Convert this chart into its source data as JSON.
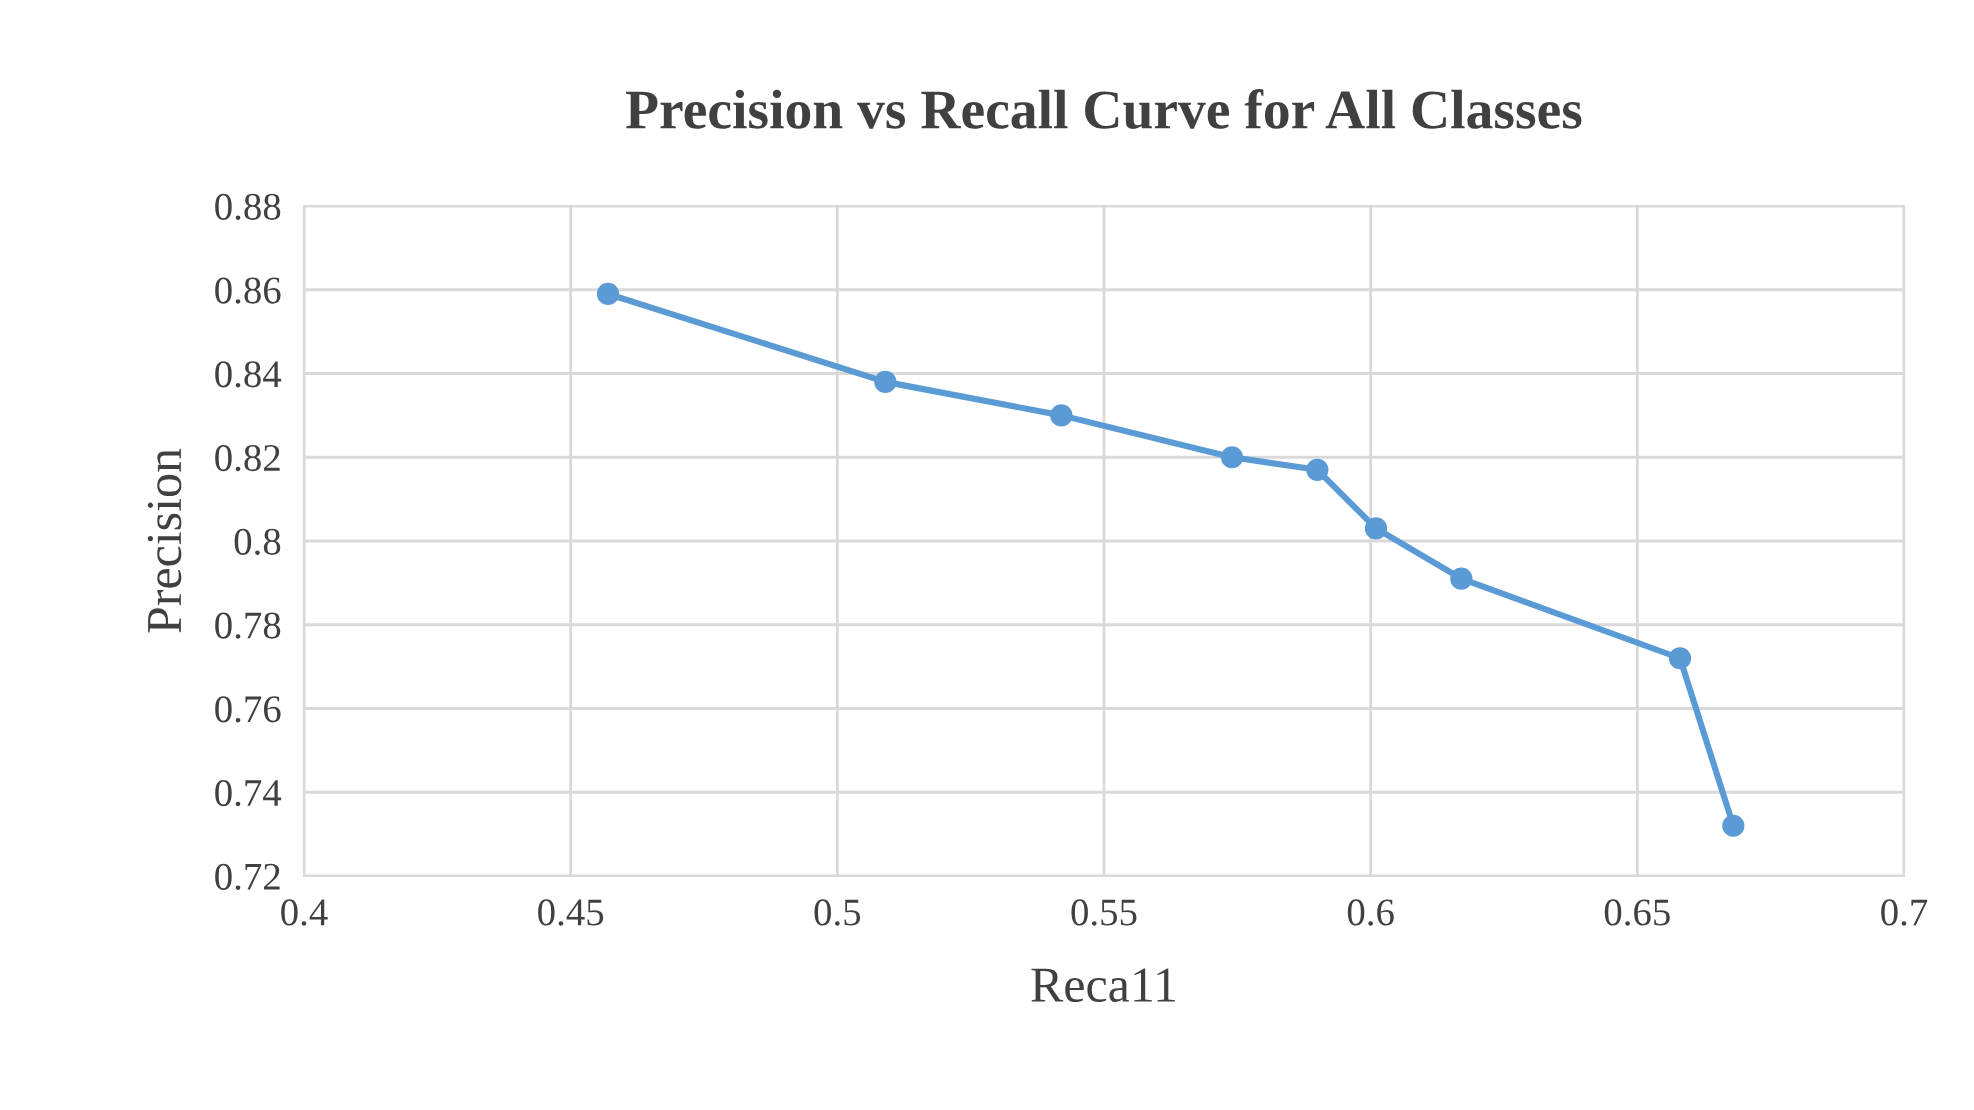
{
  "chart_data": {
    "type": "line",
    "title": "Precision vs Recall Curve for All Classes",
    "xlabel": "Reca11",
    "ylabel": "Precision",
    "series": [
      {
        "color": "#5b9bd5",
        "x": [
          0.457,
          0.509,
          0.542,
          0.574,
          0.59,
          0.601,
          0.617,
          0.658,
          0.668
        ],
        "values": [
          0.859,
          0.838,
          0.83,
          0.82,
          0.817,
          0.803,
          0.791,
          0.772,
          0.732
        ]
      }
    ],
    "xlim": [
      0.4,
      0.7
    ],
    "xticks": [
      0.4,
      0.45,
      0.5,
      0.55,
      0.6,
      0.65,
      0.7
    ],
    "ylim": [
      0.72,
      0.88
    ],
    "yticks": [
      0.72,
      0.74,
      0.76,
      0.78,
      0.8,
      0.82,
      0.84,
      0.86,
      0.88
    ],
    "grid": true,
    "marker": "circle",
    "line_style": "solid"
  }
}
